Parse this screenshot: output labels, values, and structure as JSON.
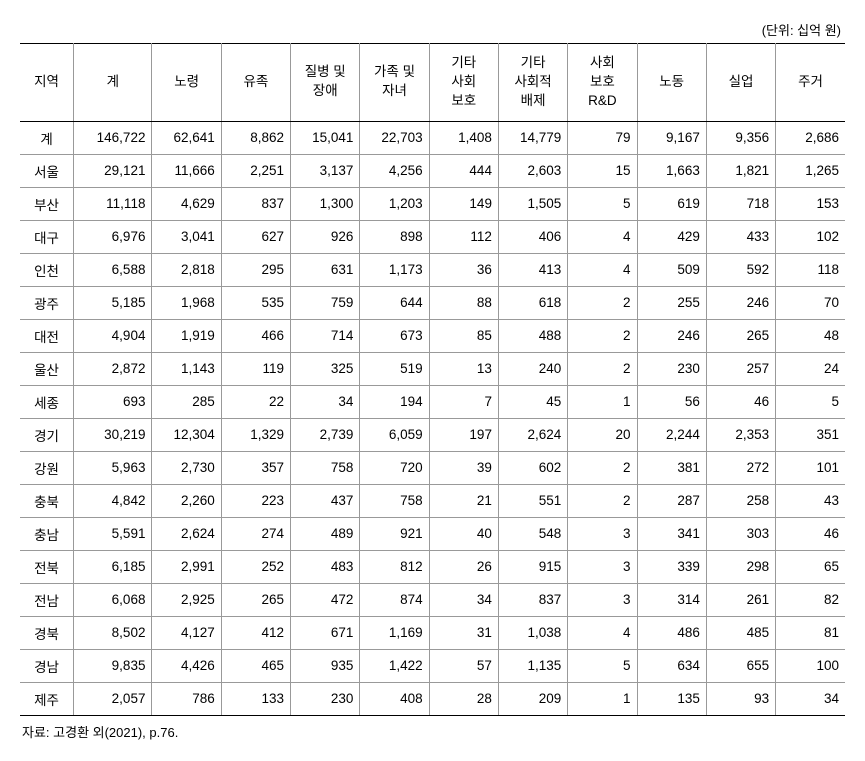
{
  "unit_label": "(단위: 십억 원)",
  "source": "자료: 고경환 외(2021), p.76.",
  "columns": [
    "지역",
    "계",
    "노령",
    "유족",
    "질병 및\n장애",
    "가족 및\n자녀",
    "기타\n사회\n보호",
    "기타\n사회적\n배제",
    "사회\n보호\nR&D",
    "노동",
    "실업",
    "주거"
  ],
  "rows": [
    {
      "region": "계",
      "values": [
        "146,722",
        "62,641",
        "8,862",
        "15,041",
        "22,703",
        "1,408",
        "14,779",
        "79",
        "9,167",
        "9,356",
        "2,686"
      ]
    },
    {
      "region": "서울",
      "values": [
        "29,121",
        "11,666",
        "2,251",
        "3,137",
        "4,256",
        "444",
        "2,603",
        "15",
        "1,663",
        "1,821",
        "1,265"
      ]
    },
    {
      "region": "부산",
      "values": [
        "11,118",
        "4,629",
        "837",
        "1,300",
        "1,203",
        "149",
        "1,505",
        "5",
        "619",
        "718",
        "153"
      ]
    },
    {
      "region": "대구",
      "values": [
        "6,976",
        "3,041",
        "627",
        "926",
        "898",
        "112",
        "406",
        "4",
        "429",
        "433",
        "102"
      ]
    },
    {
      "region": "인천",
      "values": [
        "6,588",
        "2,818",
        "295",
        "631",
        "1,173",
        "36",
        "413",
        "4",
        "509",
        "592",
        "118"
      ]
    },
    {
      "region": "광주",
      "values": [
        "5,185",
        "1,968",
        "535",
        "759",
        "644",
        "88",
        "618",
        "2",
        "255",
        "246",
        "70"
      ]
    },
    {
      "region": "대전",
      "values": [
        "4,904",
        "1,919",
        "466",
        "714",
        "673",
        "85",
        "488",
        "2",
        "246",
        "265",
        "48"
      ]
    },
    {
      "region": "울산",
      "values": [
        "2,872",
        "1,143",
        "119",
        "325",
        "519",
        "13",
        "240",
        "2",
        "230",
        "257",
        "24"
      ]
    },
    {
      "region": "세종",
      "values": [
        "693",
        "285",
        "22",
        "34",
        "194",
        "7",
        "45",
        "1",
        "56",
        "46",
        "5"
      ]
    },
    {
      "region": "경기",
      "values": [
        "30,219",
        "12,304",
        "1,329",
        "2,739",
        "6,059",
        "197",
        "2,624",
        "20",
        "2,244",
        "2,353",
        "351"
      ]
    },
    {
      "region": "강원",
      "values": [
        "5,963",
        "2,730",
        "357",
        "758",
        "720",
        "39",
        "602",
        "2",
        "381",
        "272",
        "101"
      ]
    },
    {
      "region": "충북",
      "values": [
        "4,842",
        "2,260",
        "223",
        "437",
        "758",
        "21",
        "551",
        "2",
        "287",
        "258",
        "43"
      ]
    },
    {
      "region": "충남",
      "values": [
        "5,591",
        "2,624",
        "274",
        "489",
        "921",
        "40",
        "548",
        "3",
        "341",
        "303",
        "46"
      ]
    },
    {
      "region": "전북",
      "values": [
        "6,185",
        "2,991",
        "252",
        "483",
        "812",
        "26",
        "915",
        "3",
        "339",
        "298",
        "65"
      ]
    },
    {
      "region": "전남",
      "values": [
        "6,068",
        "2,925",
        "265",
        "472",
        "874",
        "34",
        "837",
        "3",
        "314",
        "261",
        "82"
      ]
    },
    {
      "region": "경북",
      "values": [
        "8,502",
        "4,127",
        "412",
        "671",
        "1,169",
        "31",
        "1,038",
        "4",
        "486",
        "485",
        "81"
      ]
    },
    {
      "region": "경남",
      "values": [
        "9,835",
        "4,426",
        "465",
        "935",
        "1,422",
        "57",
        "1,135",
        "5",
        "634",
        "655",
        "100"
      ]
    },
    {
      "region": "제주",
      "values": [
        "2,057",
        "786",
        "133",
        "230",
        "408",
        "28",
        "209",
        "1",
        "135",
        "93",
        "34"
      ]
    }
  ],
  "styling": {
    "background_color": "#ffffff",
    "text_color": "#000000",
    "border_color_strong": "#000000",
    "border_color_light": "#999999",
    "font_size_body": 13.5,
    "font_size_meta": 13,
    "column_widths_pct": [
      6.5,
      9.5,
      8.4,
      8.4,
      8.4,
      8.4,
      8.4,
      8.4,
      8.4,
      8.4,
      8.4,
      8.4
    ]
  }
}
